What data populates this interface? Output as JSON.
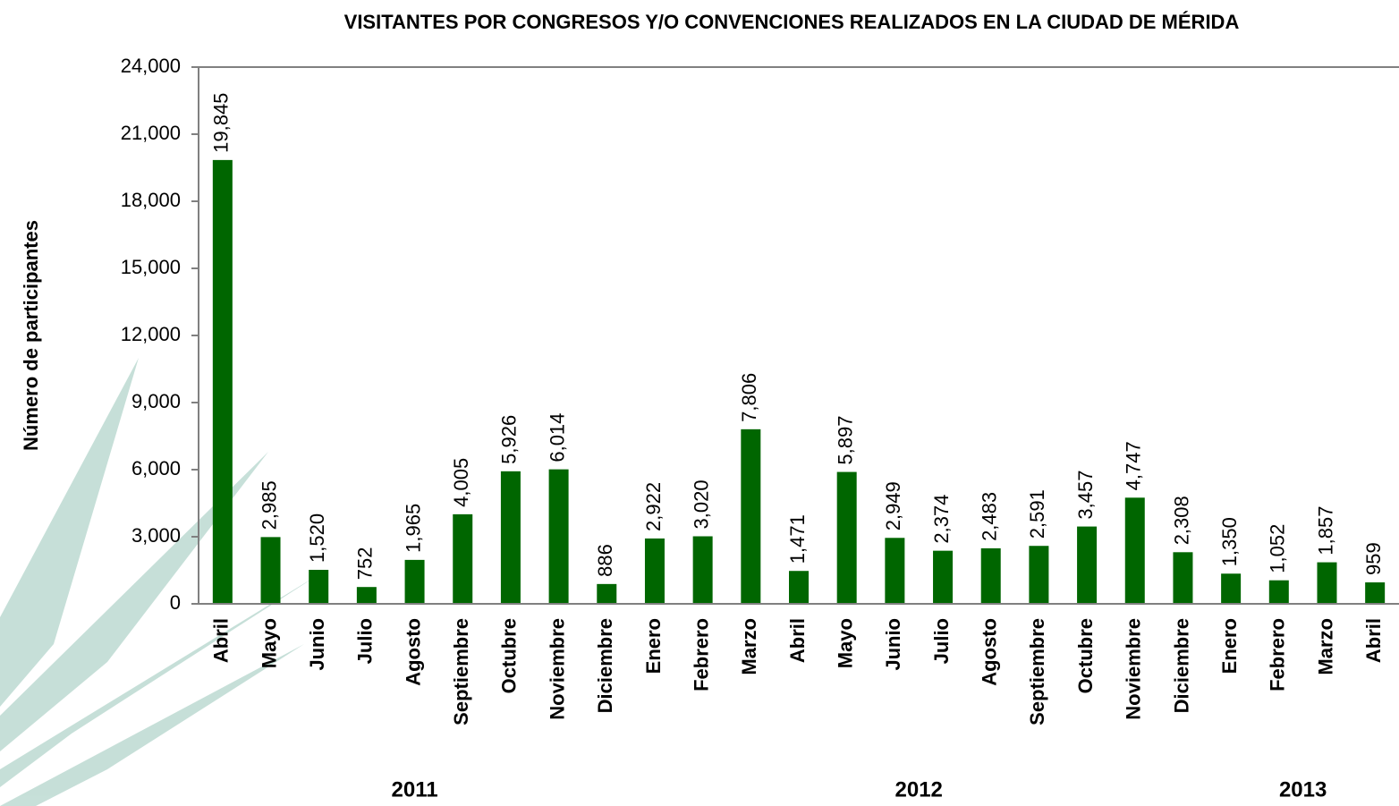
{
  "chart_data": {
    "type": "bar",
    "title": "VISITANTES POR CONGRESOS Y/O CONVENCIONES REALIZADOS EN LA CIUDAD DE MÉRIDA",
    "y_label": "Número de participantes",
    "color": "#006600",
    "ylim": [
      0,
      24000
    ],
    "yticks": [
      0,
      {
        "value": 3000,
        "label": "3,000"
      },
      {
        "value": 6000,
        "label": "6,000"
      },
      {
        "value": 9000,
        "label": "9,000"
      },
      {
        "value": 12000,
        "label": "12,000"
      },
      {
        "value": 15000,
        "label": "15,000"
      },
      {
        "value": 18000,
        "label": "18,000"
      },
      {
        "value": 21000,
        "label": "21,000"
      },
      {
        "value": 24000,
        "label": "24,000"
      }
    ],
    "groups": [
      {
        "label": "2011",
        "categories": [
          "Abril",
          "Mayo",
          "Junio",
          "Julio",
          "Agosto",
          "Septiembre",
          "Octubre",
          "Noviembre",
          "Diciembre"
        ],
        "values": [
          19845,
          2985,
          1520,
          752,
          1965,
          4005,
          5926,
          6014,
          886
        ],
        "value_labels": [
          "19,845",
          "2,985",
          "1,520",
          "752",
          "1,965",
          "4,005",
          "5,926",
          "6,014",
          "886"
        ]
      },
      {
        "label": "2012",
        "categories": [
          "Enero",
          "Febrero",
          "Marzo",
          "Abril",
          "Mayo",
          "Junio",
          "Julio",
          "Agosto",
          "Septiembre",
          "Octubre",
          "Noviembre",
          "Diciembre"
        ],
        "values": [
          2922,
          3020,
          7806,
          1471,
          5897,
          2949,
          2374,
          2483,
          2591,
          3457,
          4747,
          2308
        ],
        "value_labels": [
          "2,922",
          "3,020",
          "7,806",
          "1,471",
          "5,897",
          "2,949",
          "2,374",
          "2,483",
          "2,591",
          "3,457",
          "4,747",
          "2,308"
        ]
      },
      {
        "label": "2013",
        "categories": [
          "Enero",
          "Febrero",
          "Marzo",
          "Abril"
        ],
        "values": [
          1350,
          1052,
          1857,
          959
        ],
        "value_labels": [
          "1,350",
          "1,052",
          "1,857",
          "959"
        ]
      }
    ]
  }
}
